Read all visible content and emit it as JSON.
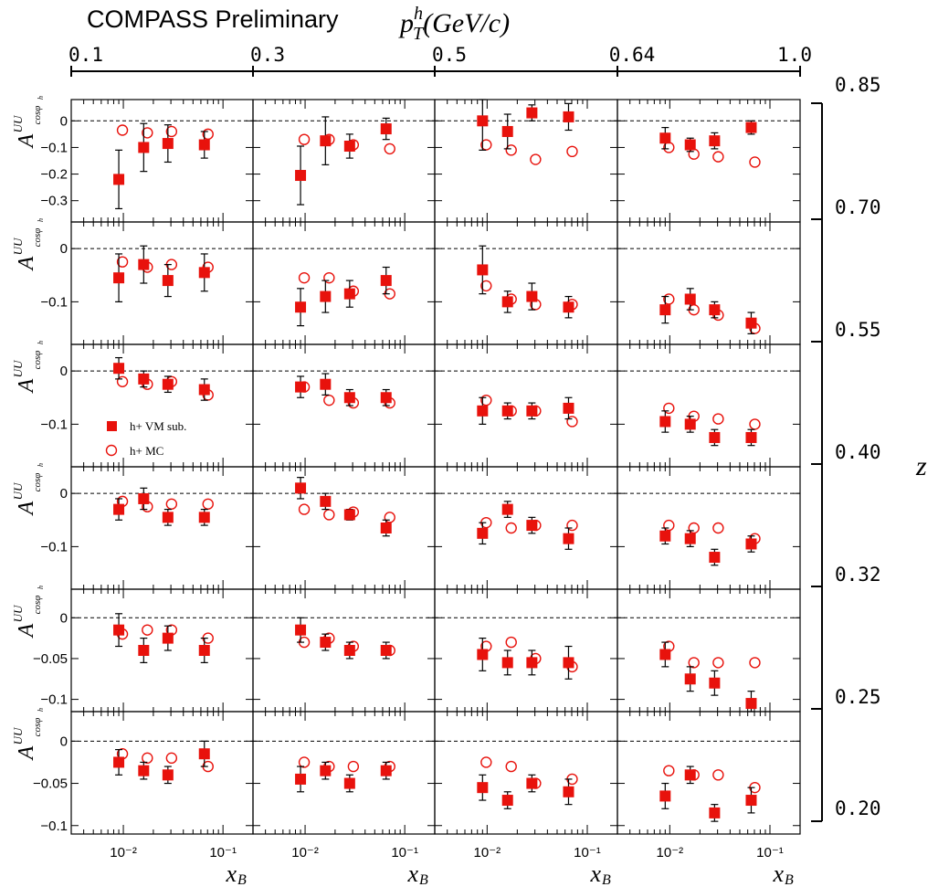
{
  "header": {
    "experiment_label": "COMPASS Preliminary",
    "pt_axis_label": "p_T^h(GeV/c)",
    "pt_bin_edges": [
      "0.1",
      "0.3",
      "0.5",
      "0.64",
      "1.0"
    ]
  },
  "z_axis": {
    "label": "z",
    "bin_edges": [
      "0.85",
      "0.70",
      "0.55",
      "0.40",
      "0.32",
      "0.25",
      "0.20"
    ]
  },
  "x_axis": {
    "label": "x_B",
    "tick_labels": [
      "10⁻²",
      "10⁻¹"
    ],
    "scale": "log",
    "range": [
      0.003,
      0.2
    ]
  },
  "y_axis_label": "A^UU_cosφh",
  "legend": {
    "placement": "lower-left of third row, first column",
    "entries": [
      {
        "label": "h+ VM sub.",
        "marker": "filled-square",
        "color": "#e8120c"
      },
      {
        "label": "h+ MC",
        "marker": "open-circle",
        "color": "#e8120c"
      }
    ]
  },
  "colors": {
    "data": "#e8120c",
    "errors": "#000000",
    "frame": "#000000",
    "zero_line": "#000000"
  },
  "chart_data": {
    "type": "scatter",
    "grid": false,
    "x_bin_centers": [
      0.009,
      0.016,
      0.028,
      0.065
    ],
    "rows": [
      {
        "z_bin": "0.70-0.85",
        "ylim": [
          -0.38,
          0.08
        ],
        "y_ticks": [
          {
            "v": 0,
            "l": "0"
          },
          {
            "v": -0.1,
            "l": "−0.1"
          },
          {
            "v": -0.2,
            "l": "−0.2"
          },
          {
            "v": -0.3,
            "l": "−0.3"
          }
        ],
        "panels": [
          {
            "pt_bin": "0.1-0.3",
            "vm_sub": [
              -0.22,
              -0.1,
              -0.085,
              -0.09
            ],
            "vm_err": [
              0.11,
              0.09,
              0.07,
              0.05
            ],
            "mc": [
              -0.035,
              -0.045,
              -0.04,
              -0.05
            ]
          },
          {
            "pt_bin": "0.3-0.5",
            "vm_sub": [
              -0.205,
              -0.075,
              -0.095,
              -0.03
            ],
            "vm_err": [
              0.11,
              0.09,
              0.045,
              0.04
            ],
            "mc": [
              -0.07,
              -0.07,
              -0.09,
              -0.105
            ]
          },
          {
            "pt_bin": "0.5-0.64",
            "vm_sub": [
              0.0,
              -0.04,
              0.03,
              0.015
            ],
            "vm_err": [
              0.11,
              0.065,
              0.03,
              0.05
            ],
            "mc": [
              -0.09,
              -0.11,
              -0.145,
              -0.115
            ]
          },
          {
            "pt_bin": "0.64-1.0",
            "vm_sub": [
              -0.065,
              -0.09,
              -0.075,
              -0.025
            ],
            "vm_err": [
              0.04,
              0.025,
              0.03,
              0.025
            ],
            "mc": [
              -0.1,
              -0.125,
              -0.135,
              -0.155
            ]
          }
        ]
      },
      {
        "z_bin": "0.55-0.70",
        "ylim": [
          -0.18,
          0.05
        ],
        "y_ticks": [
          {
            "v": 0,
            "l": "0"
          },
          {
            "v": -0.1,
            "l": "−0.1"
          }
        ],
        "panels": [
          {
            "pt_bin": "0.1-0.3",
            "vm_sub": [
              -0.055,
              -0.03,
              -0.06,
              -0.045
            ],
            "vm_err": [
              0.045,
              0.035,
              0.03,
              0.035
            ],
            "mc": [
              -0.025,
              -0.035,
              -0.03,
              -0.035
            ]
          },
          {
            "pt_bin": "0.3-0.5",
            "vm_sub": [
              -0.11,
              -0.09,
              -0.085,
              -0.06
            ],
            "vm_err": [
              0.035,
              0.03,
              0.025,
              0.025
            ],
            "mc": [
              -0.055,
              -0.055,
              -0.08,
              -0.085
            ]
          },
          {
            "pt_bin": "0.5-0.64",
            "vm_sub": [
              -0.04,
              -0.1,
              -0.09,
              -0.11
            ],
            "vm_err": [
              0.045,
              0.02,
              0.025,
              0.02
            ],
            "mc": [
              -0.07,
              -0.095,
              -0.105,
              -0.105
            ]
          },
          {
            "pt_bin": "0.64-1.0",
            "vm_sub": [
              -0.115,
              -0.095,
              -0.115,
              -0.14
            ],
            "vm_err": [
              0.025,
              0.02,
              0.015,
              0.02
            ],
            "mc": [
              -0.095,
              -0.115,
              -0.125,
              -0.15
            ]
          }
        ]
      },
      {
        "z_bin": "0.40-0.55",
        "ylim": [
          -0.18,
          0.05
        ],
        "y_ticks": [
          {
            "v": 0,
            "l": "0"
          },
          {
            "v": -0.1,
            "l": "−0.1"
          }
        ],
        "panels": [
          {
            "pt_bin": "0.1-0.3",
            "vm_sub": [
              0.005,
              -0.015,
              -0.025,
              -0.035
            ],
            "vm_err": [
              0.02,
              0.015,
              0.015,
              0.02
            ],
            "mc": [
              -0.02,
              -0.025,
              -0.02,
              -0.045
            ]
          },
          {
            "pt_bin": "0.3-0.5",
            "vm_sub": [
              -0.03,
              -0.025,
              -0.05,
              -0.05
            ],
            "vm_err": [
              0.02,
              0.02,
              0.015,
              0.015
            ],
            "mc": [
              -0.03,
              -0.055,
              -0.06,
              -0.06
            ]
          },
          {
            "pt_bin": "0.5-0.64",
            "vm_sub": [
              -0.075,
              -0.075,
              -0.075,
              -0.07
            ],
            "vm_err": [
              0.025,
              0.015,
              0.015,
              0.02
            ],
            "mc": [
              -0.055,
              -0.075,
              -0.075,
              -0.095
            ]
          },
          {
            "pt_bin": "0.64-1.0",
            "vm_sub": [
              -0.095,
              -0.1,
              -0.125,
              -0.125
            ],
            "vm_err": [
              0.02,
              0.015,
              0.015,
              0.015
            ],
            "mc": [
              -0.07,
              -0.085,
              -0.09,
              -0.1
            ]
          }
        ]
      },
      {
        "z_bin": "0.32-0.40",
        "ylim": [
          -0.18,
          0.05
        ],
        "y_ticks": [
          {
            "v": 0,
            "l": "0"
          },
          {
            "v": -0.1,
            "l": "−0.1"
          }
        ],
        "panels": [
          {
            "pt_bin": "0.1-0.3",
            "vm_sub": [
              -0.03,
              -0.01,
              -0.045,
              -0.045
            ],
            "vm_err": [
              0.02,
              0.02,
              0.015,
              0.015
            ],
            "mc": [
              -0.015,
              -0.025,
              -0.02,
              -0.02
            ]
          },
          {
            "pt_bin": "0.3-0.5",
            "vm_sub": [
              0.01,
              -0.015,
              -0.04,
              -0.065
            ],
            "vm_err": [
              0.02,
              0.015,
              0.01,
              0.015
            ],
            "mc": [
              -0.03,
              -0.04,
              -0.035,
              -0.045
            ]
          },
          {
            "pt_bin": "0.5-0.64",
            "vm_sub": [
              -0.075,
              -0.03,
              -0.06,
              -0.085
            ],
            "vm_err": [
              0.02,
              0.015,
              0.015,
              0.02
            ],
            "mc": [
              -0.055,
              -0.065,
              -0.06,
              -0.06
            ]
          },
          {
            "pt_bin": "0.64-1.0",
            "vm_sub": [
              -0.08,
              -0.085,
              -0.12,
              -0.095
            ],
            "vm_err": [
              0.015,
              0.015,
              0.015,
              0.015
            ],
            "mc": [
              -0.06,
              -0.065,
              -0.065,
              -0.085
            ]
          }
        ]
      },
      {
        "z_bin": "0.25-0.32",
        "ylim": [
          -0.115,
          0.035
        ],
        "y_ticks": [
          {
            "v": 0,
            "l": "0"
          },
          {
            "v": -0.05,
            "l": "−0.05"
          },
          {
            "v": -0.1,
            "l": "−0.1"
          }
        ],
        "panels": [
          {
            "pt_bin": "0.1-0.3",
            "vm_sub": [
              -0.015,
              -0.04,
              -0.025,
              -0.04
            ],
            "vm_err": [
              0.02,
              0.015,
              0.015,
              0.015
            ],
            "mc": [
              -0.02,
              -0.015,
              -0.015,
              -0.025
            ]
          },
          {
            "pt_bin": "0.3-0.5",
            "vm_sub": [
              -0.015,
              -0.03,
              -0.04,
              -0.04
            ],
            "vm_err": [
              0.015,
              0.01,
              0.01,
              0.01
            ],
            "mc": [
              -0.03,
              -0.025,
              -0.035,
              -0.04
            ]
          },
          {
            "pt_bin": "0.5-0.64",
            "vm_sub": [
              -0.045,
              -0.055,
              -0.055,
              -0.055
            ],
            "vm_err": [
              0.02,
              0.015,
              0.015,
              0.02
            ],
            "mc": [
              -0.035,
              -0.03,
              -0.05,
              -0.06
            ]
          },
          {
            "pt_bin": "0.64-1.0",
            "vm_sub": [
              -0.045,
              -0.075,
              -0.08,
              -0.105
            ],
            "vm_err": [
              0.015,
              0.015,
              0.015,
              0.015
            ],
            "mc": [
              -0.035,
              -0.055,
              -0.055,
              -0.055
            ]
          }
        ]
      },
      {
        "z_bin": "0.20-0.25",
        "ylim": [
          -0.11,
          0.035
        ],
        "y_ticks": [
          {
            "v": 0,
            "l": "0"
          },
          {
            "v": -0.05,
            "l": "−0.05"
          },
          {
            "v": -0.1,
            "l": "−0.1"
          }
        ],
        "panels": [
          {
            "pt_bin": "0.1-0.3",
            "vm_sub": [
              -0.025,
              -0.035,
              -0.04,
              -0.015
            ],
            "vm_err": [
              0.015,
              0.01,
              0.01,
              0.015
            ],
            "mc": [
              -0.015,
              -0.02,
              -0.02,
              -0.03
            ]
          },
          {
            "pt_bin": "0.3-0.5",
            "vm_sub": [
              -0.045,
              -0.035,
              -0.05,
              -0.035
            ],
            "vm_err": [
              0.015,
              0.01,
              0.01,
              0.01
            ],
            "mc": [
              -0.025,
              -0.03,
              -0.03,
              -0.03
            ]
          },
          {
            "pt_bin": "0.5-0.64",
            "vm_sub": [
              -0.055,
              -0.07,
              -0.05,
              -0.06
            ],
            "vm_err": [
              0.015,
              0.01,
              0.01,
              0.015
            ],
            "mc": [
              -0.025,
              -0.03,
              -0.05,
              -0.045
            ]
          },
          {
            "pt_bin": "0.64-1.0",
            "vm_sub": [
              -0.065,
              -0.04,
              -0.085,
              -0.07
            ],
            "vm_err": [
              0.015,
              0.01,
              0.01,
              0.015
            ],
            "mc": [
              -0.035,
              -0.04,
              -0.04,
              -0.055
            ]
          }
        ]
      }
    ]
  }
}
